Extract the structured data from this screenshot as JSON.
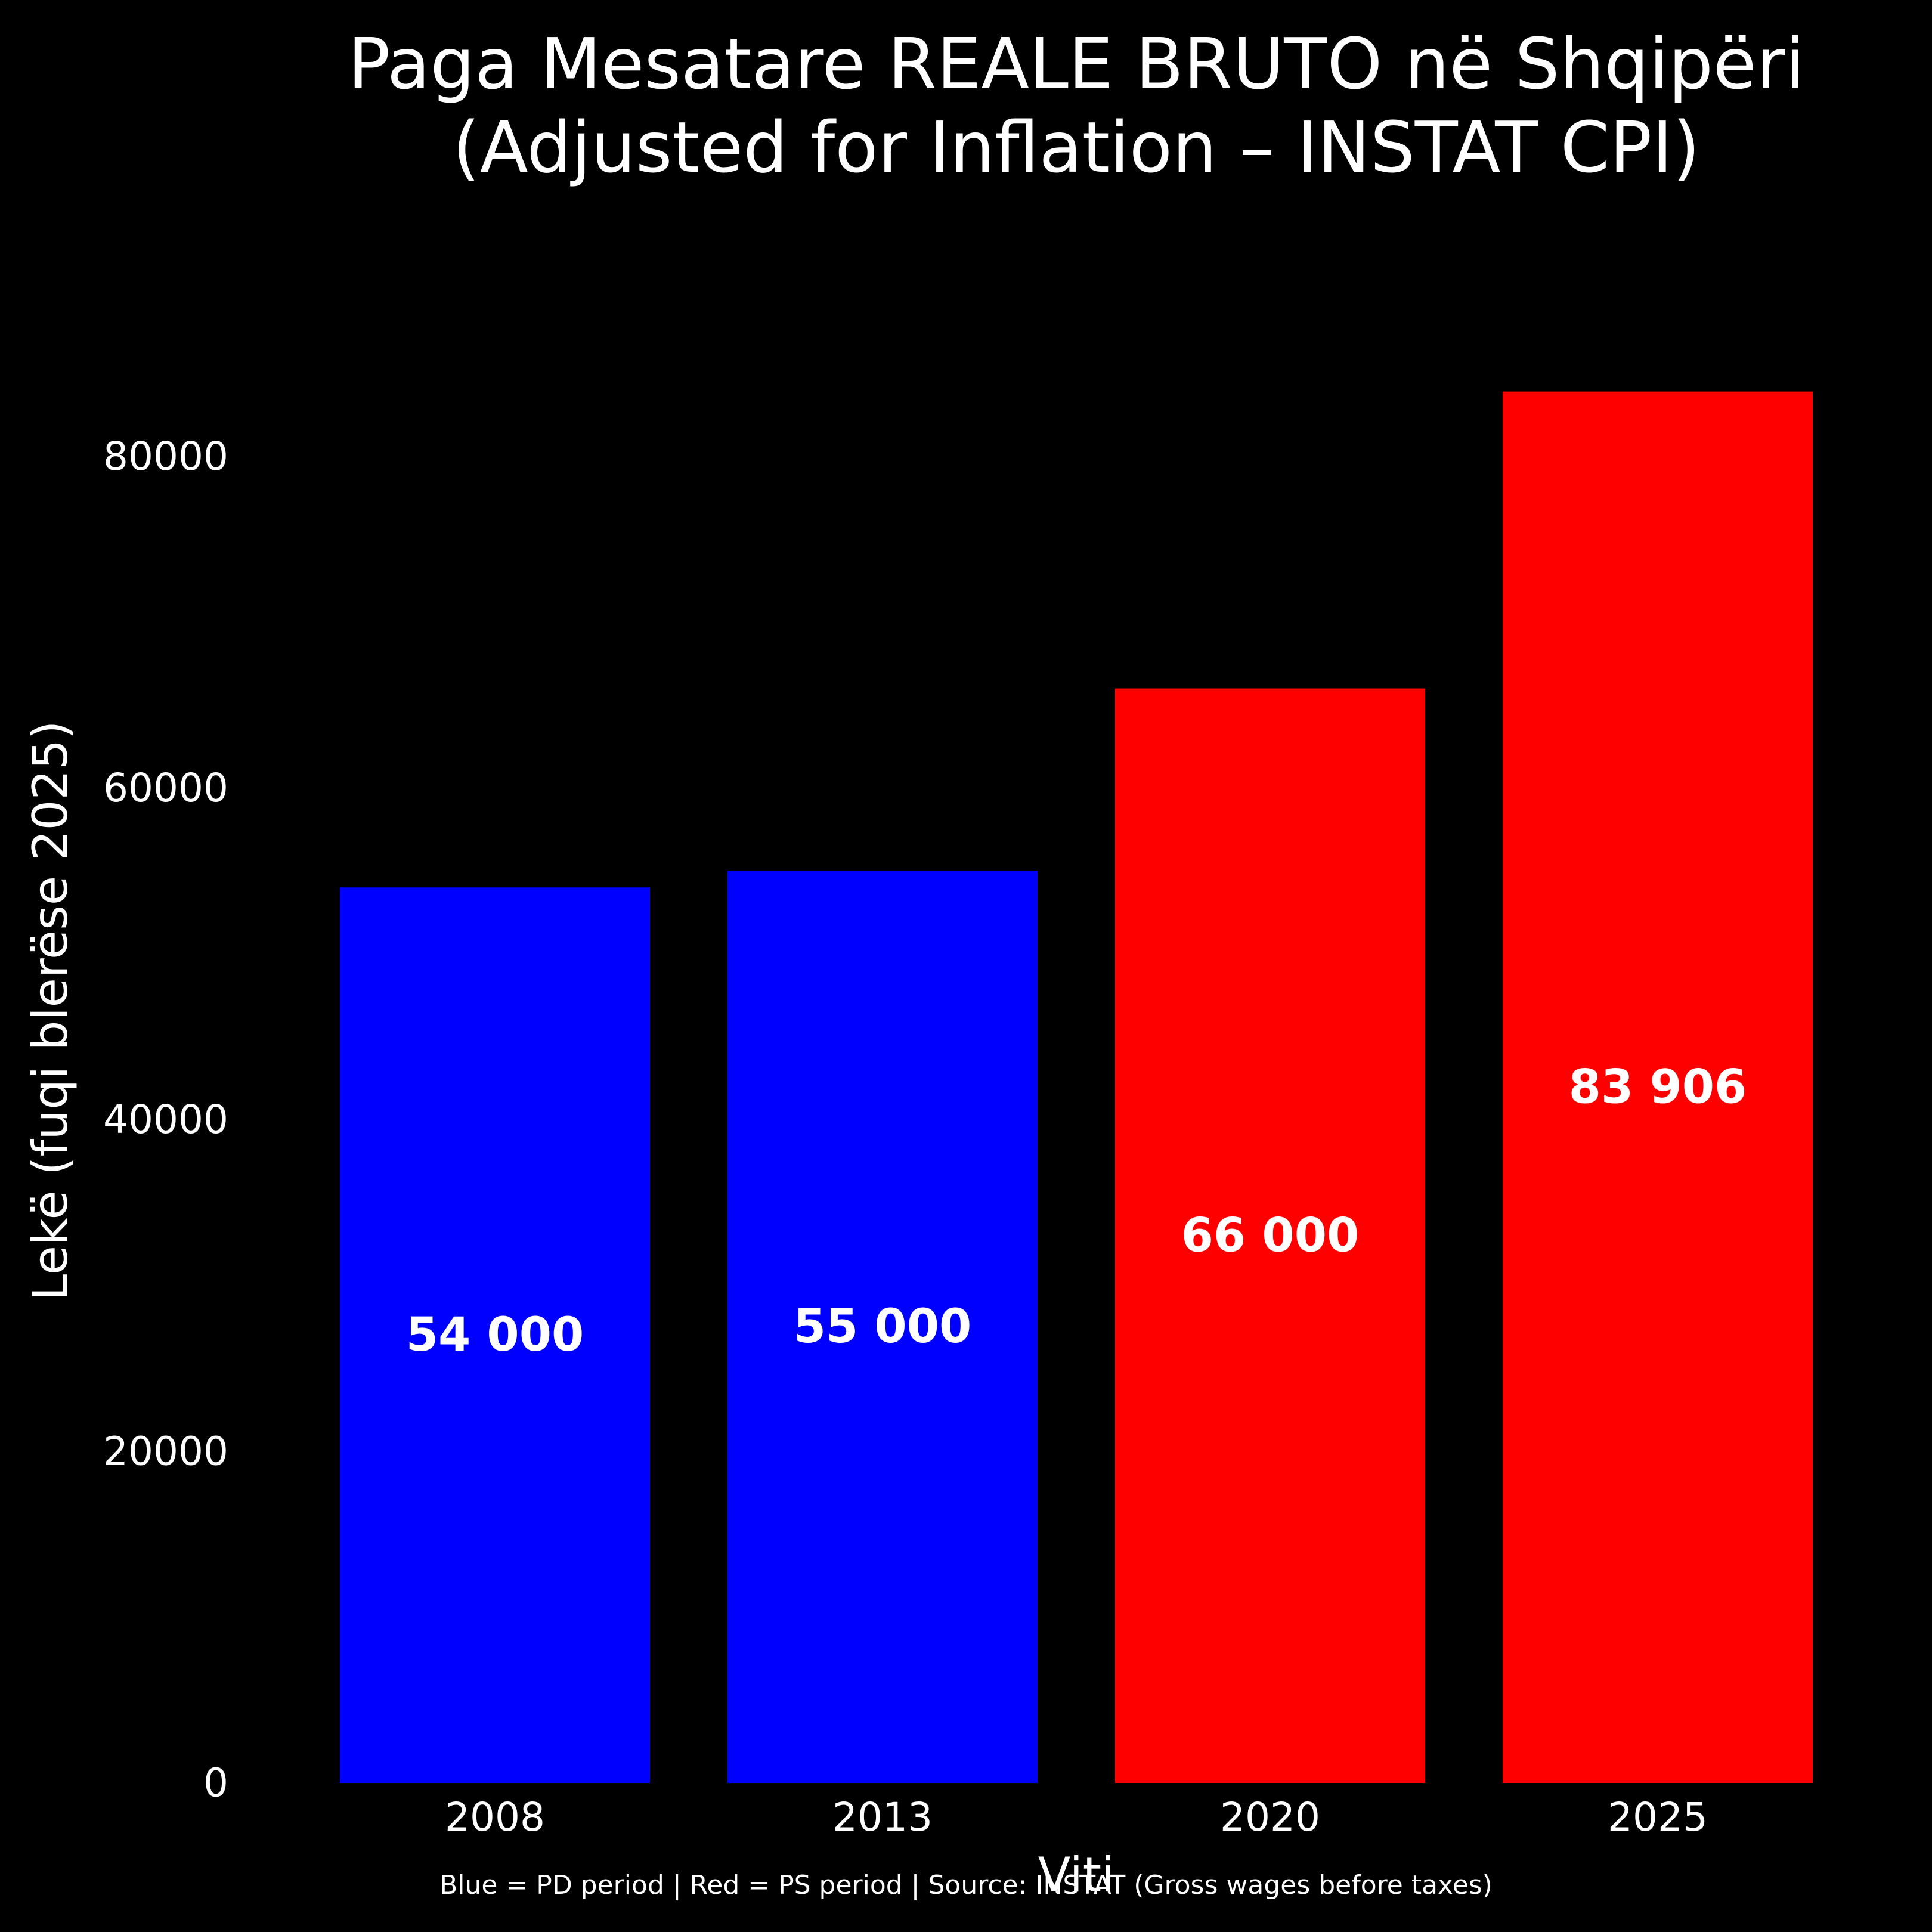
{
  "chart_data": {
    "type": "bar",
    "title_lines": [
      "Paga Mesatare REALE BRUTO në Shqipëri",
      "(Adjusted for Inflation – INSTAT CPI)"
    ],
    "xlabel": "Viti",
    "ylabel": "Lekë (fuqi blerëse 2025)",
    "categories": [
      "2008",
      "2013",
      "2020",
      "2025"
    ],
    "values": [
      54000,
      55000,
      66000,
      83906
    ],
    "value_labels": [
      "54 000",
      "55 000",
      "66 000",
      "83 906"
    ],
    "bar_colors": [
      "#0000ff",
      "#0000ff",
      "#ff0000",
      "#ff0000"
    ],
    "yticks": [
      0,
      20000,
      40000,
      60000,
      80000
    ],
    "ylim": [
      0,
      88100
    ],
    "grid": false,
    "footnote": "Blue = PD period | Red = PS period | Source: INSTAT (Gross wages before taxes)"
  },
  "colors": {
    "background": "#000000",
    "text": "#ffffff",
    "pd": "#0000ff",
    "ps": "#ff0000"
  }
}
